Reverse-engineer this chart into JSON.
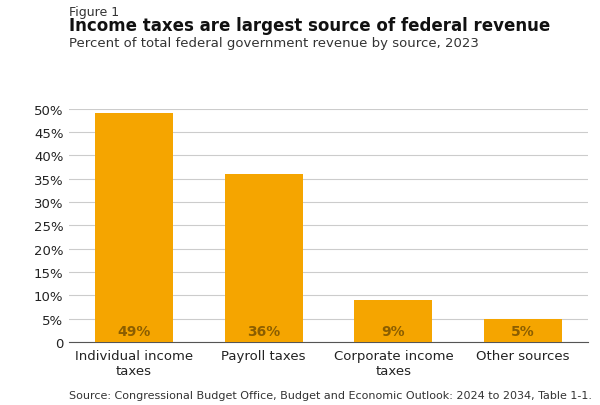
{
  "figure_label": "Figure 1",
  "title": "Income taxes are largest source of federal revenue",
  "subtitle": "Percent of total federal government revenue by source, 2023",
  "source": "Source: Congressional Budget Office, Budget and Economic Outlook: 2024 to 2034, Table 1-1.",
  "categories": [
    "Individual income\ntaxes",
    "Payroll taxes",
    "Corporate income\ntaxes",
    "Other sources"
  ],
  "values": [
    49,
    36,
    9,
    5
  ],
  "bar_color": "#F5A500",
  "bar_labels": [
    "49%",
    "36%",
    "9%",
    "5%"
  ],
  "ylim": [
    0,
    50
  ],
  "yticks": [
    0,
    5,
    10,
    15,
    20,
    25,
    30,
    35,
    40,
    45,
    50
  ],
  "background_color": "#FFFFFF",
  "grid_color": "#CCCCCC",
  "label_color": "#8B5E00",
  "title_fontsize": 12,
  "subtitle_fontsize": 9.5,
  "figure_label_fontsize": 9,
  "tick_fontsize": 9.5,
  "bar_label_fontsize": 10,
  "source_fontsize": 8
}
